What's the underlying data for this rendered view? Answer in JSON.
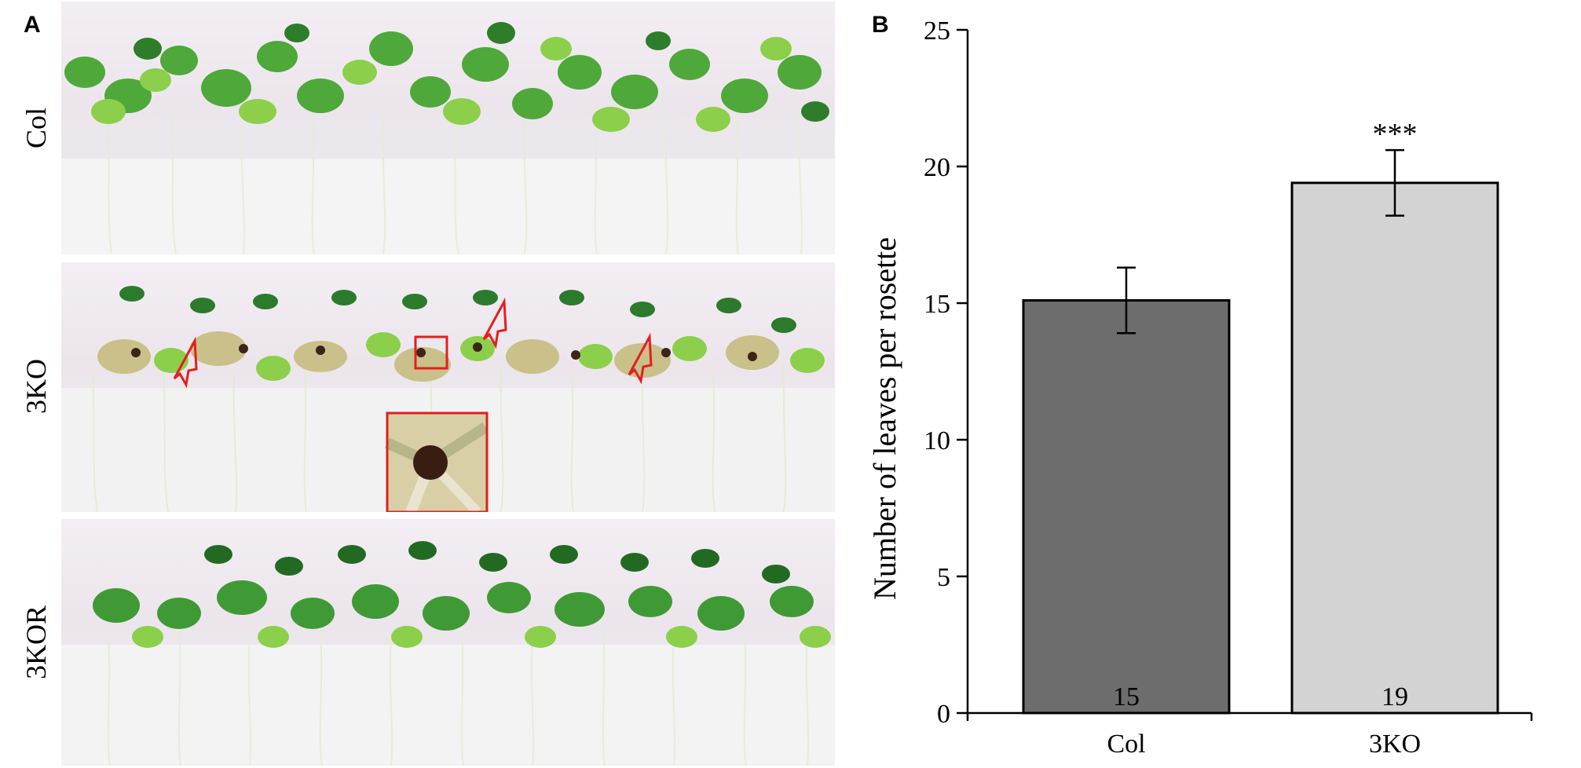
{
  "panel_a": {
    "letter": "A",
    "rows": [
      {
        "label": "Col"
      },
      {
        "label": "3KO"
      },
      {
        "label": "3KOR"
      }
    ]
  },
  "panel_b": {
    "letter": "B"
  },
  "chart_data": {
    "type": "bar",
    "categories": [
      "Col",
      "3KO"
    ],
    "values": [
      15.1,
      19.4
    ],
    "errors": [
      1.2,
      1.2
    ],
    "bar_labels": [
      "15",
      "19"
    ],
    "significance": [
      "",
      "***"
    ],
    "bar_colors": [
      "#6d6d6d",
      "#d3d3d3"
    ],
    "title": "",
    "xlabel": "",
    "ylabel": "Number of leaves per rosette",
    "ylim": [
      0,
      25
    ],
    "yticks": [
      0,
      5,
      10,
      15,
      20,
      25
    ],
    "grid": false
  }
}
